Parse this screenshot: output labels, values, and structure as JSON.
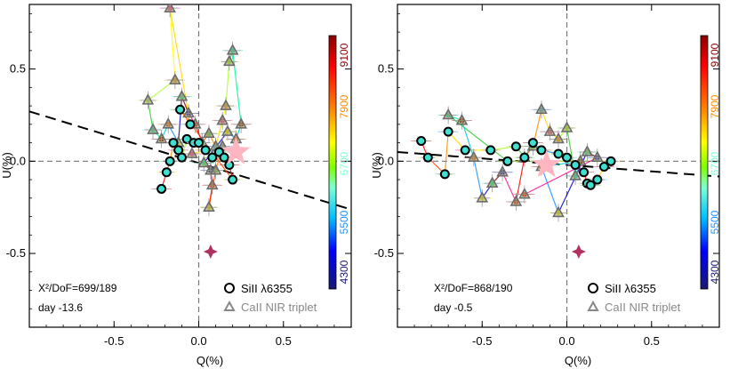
{
  "chart_data": [
    {
      "type": "scatter",
      "xlabel": "Q(%)",
      "ylabel": "U(%)",
      "xlim": [
        -1.0,
        0.9
      ],
      "ylim": [
        -0.9,
        0.85
      ],
      "xticks": [
        "-0.5",
        "0.0",
        "0.5"
      ],
      "yticks": [
        "0.5",
        "0.0",
        "-0.5"
      ],
      "grid": false,
      "annotation_chi": "X²/DoF=699/189",
      "annotation_day": "day -13.6",
      "legend": {
        "placement": "bottom-right",
        "entries": [
          "SiII λ6355",
          "CaII NIR triplet"
        ]
      },
      "colorbar": {
        "ticks": [
          "9100",
          "7900",
          "6700",
          "5500",
          "4300"
        ],
        "colors": [
          "#8b0000",
          "#ff8c00",
          "#7fffd4",
          "#1e90ff",
          "#191970"
        ]
      },
      "dominant_axis": {
        "intercept": -0.01,
        "slope": -0.28
      },
      "continuum_star": [
        0.22,
        0.05
      ],
      "isp_star": [
        0.07,
        -0.49
      ],
      "series": [
        {
          "name": "SiII λ6355",
          "points": [
            [
              -0.22,
              -0.15
            ],
            [
              -0.19,
              -0.06
            ],
            [
              -0.17,
              0.0
            ],
            [
              -0.15,
              0.1
            ],
            [
              -0.12,
              0.06
            ],
            [
              -0.1,
              0.02
            ],
            [
              -0.07,
              0.12
            ],
            [
              -0.03,
              0.1
            ],
            [
              0.0,
              0.1
            ],
            [
              0.04,
              0.06
            ],
            [
              0.08,
              0.02
            ],
            [
              0.12,
              0.05
            ],
            [
              0.15,
              0.02
            ],
            [
              0.18,
              -0.02
            ],
            [
              0.2,
              -0.1
            ],
            [
              -0.11,
              0.28
            ],
            [
              -0.05,
              0.2
            ]
          ]
        },
        {
          "name": "CaII NIR triplet",
          "points": [
            [
              -0.17,
              0.83
            ],
            [
              -0.14,
              0.44
            ],
            [
              -0.3,
              0.33
            ],
            [
              -0.27,
              0.17
            ],
            [
              -0.22,
              0.12
            ],
            [
              -0.18,
              0.2
            ],
            [
              -0.12,
              0.1
            ],
            [
              -0.1,
              0.35
            ],
            [
              -0.06,
              0.26
            ],
            [
              -0.02,
              0.2
            ],
            [
              0.02,
              0.1
            ],
            [
              0.06,
              0.15
            ],
            [
              0.1,
              0.08
            ],
            [
              0.14,
              0.22
            ],
            [
              0.16,
              0.3
            ],
            [
              0.18,
              0.54
            ],
            [
              0.2,
              0.6
            ],
            [
              0.25,
              0.2
            ],
            [
              0.22,
              0.12
            ],
            [
              0.17,
              0.16
            ],
            [
              0.03,
              -0.01
            ],
            [
              0.07,
              -0.05
            ],
            [
              0.08,
              -0.13
            ],
            [
              0.06,
              -0.25
            ],
            [
              0.1,
              -0.05
            ],
            [
              0.14,
              0.08
            ],
            [
              -0.04,
              0.04
            ]
          ]
        }
      ]
    },
    {
      "type": "scatter",
      "xlabel": "Q(%)",
      "ylabel": "U(%)",
      "xlim": [
        -1.0,
        0.9
      ],
      "ylim": [
        -0.9,
        0.85
      ],
      "xticks": [
        "-0.5",
        "0.0",
        "0.5"
      ],
      "yticks": [
        "0.5",
        "0.0",
        "-0.5"
      ],
      "grid": false,
      "annotation_chi": "X²/DoF=868/190",
      "annotation_day": "day -0.5",
      "legend": {
        "placement": "bottom-right",
        "entries": [
          "SiII λ6355",
          "CaII NIR triplet"
        ]
      },
      "colorbar": {
        "ticks": [
          "9100",
          "7900",
          "6700",
          "5500",
          "4300"
        ],
        "colors": [
          "#8b0000",
          "#ff8c00",
          "#7fffd4",
          "#1e90ff",
          "#191970"
        ]
      },
      "dominant_axis": {
        "intercept": -0.02,
        "slope": -0.07
      },
      "continuum_star": [
        -0.12,
        -0.02
      ],
      "isp_star": [
        0.07,
        -0.49
      ],
      "series": [
        {
          "name": "SiII λ6355",
          "points": [
            [
              -0.86,
              0.11
            ],
            [
              -0.82,
              0.02
            ],
            [
              -0.72,
              -0.07
            ],
            [
              -0.7,
              0.16
            ],
            [
              -0.6,
              0.06
            ],
            [
              -0.45,
              0.06
            ],
            [
              -0.3,
              0.08
            ],
            [
              -0.25,
              0.02
            ],
            [
              -0.2,
              0.1
            ],
            [
              -0.15,
              0.06
            ],
            [
              -0.05,
              0.04
            ],
            [
              0.0,
              0.02
            ],
            [
              0.05,
              -0.02
            ],
            [
              0.1,
              -0.06
            ],
            [
              0.12,
              -0.12
            ],
            [
              0.14,
              -0.13
            ],
            [
              0.18,
              -0.1
            ],
            [
              0.22,
              -0.03
            ],
            [
              0.26,
              0.0
            ],
            [
              -0.35,
              0.0
            ]
          ]
        },
        {
          "name": "CaII NIR triplet",
          "points": [
            [
              -0.7,
              0.25
            ],
            [
              -0.62,
              0.22
            ],
            [
              -0.55,
              0.02
            ],
            [
              -0.5,
              -0.2
            ],
            [
              -0.44,
              -0.12
            ],
            [
              -0.38,
              -0.06
            ],
            [
              -0.3,
              -0.22
            ],
            [
              -0.25,
              0.02
            ],
            [
              -0.2,
              0.08
            ],
            [
              -0.15,
              0.28
            ],
            [
              -0.1,
              0.16
            ],
            [
              -0.05,
              0.12
            ],
            [
              0.0,
              0.18
            ],
            [
              0.05,
              -0.08
            ],
            [
              0.08,
              0.0
            ],
            [
              -0.15,
              -0.03
            ],
            [
              -0.05,
              -0.28
            ],
            [
              0.12,
              0.05
            ],
            [
              0.18,
              0.02
            ],
            [
              -0.25,
              -0.18
            ]
          ]
        }
      ]
    }
  ]
}
